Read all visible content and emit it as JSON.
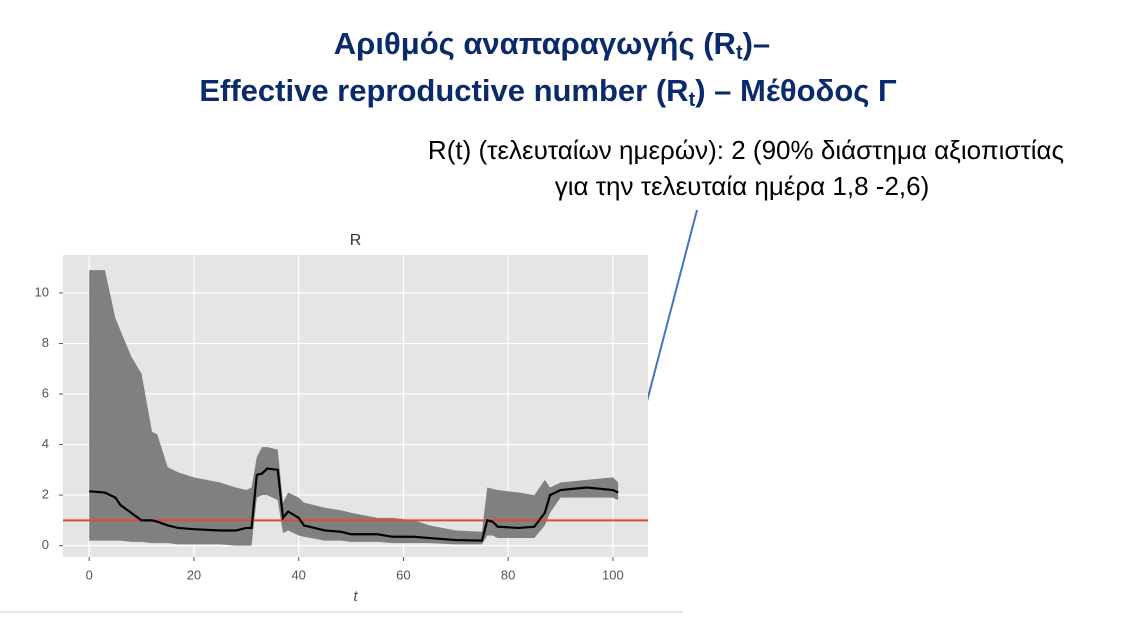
{
  "header": {
    "line1": [
      "Αριθμός αναπαραγωγής (R",
      "t",
      ")–"
    ],
    "line2": [
      "Effective reproductive number (R",
      "t",
      ") – Μέθοδος Γ"
    ]
  },
  "annotation": [
    "R(t) (τελευταίων ημερών): 2 (90% διάστημα αξιοπιστίας",
    "για την τελευταία ημέρα 1,8 -2,6)"
  ],
  "chart_data": {
    "type": "line",
    "title": "R",
    "xlabel": "t",
    "x": [
      0,
      3,
      5,
      6,
      8,
      10,
      12,
      13,
      15,
      17,
      20,
      25,
      28,
      30,
      31,
      32,
      33,
      34,
      36,
      37,
      38,
      40,
      41,
      45,
      48,
      50,
      55,
      58,
      62,
      65,
      70,
      75,
      76,
      77,
      78,
      82,
      85,
      87,
      88,
      90,
      95,
      100,
      101
    ],
    "line": {
      "color": "#000000",
      "values": [
        2.15,
        2.1,
        1.9,
        1.6,
        1.3,
        1.0,
        1.0,
        0.95,
        0.8,
        0.7,
        0.65,
        0.6,
        0.6,
        0.7,
        0.7,
        2.8,
        2.85,
        3.05,
        3.0,
        1.1,
        1.35,
        1.1,
        0.8,
        0.6,
        0.55,
        0.45,
        0.45,
        0.35,
        0.35,
        0.3,
        0.22,
        0.2,
        1.0,
        0.95,
        0.75,
        0.7,
        0.75,
        1.3,
        2.0,
        2.2,
        2.3,
        2.2,
        2.1
      ]
    },
    "band": {
      "color": "#808080",
      "upper": [
        10.9,
        10.9,
        9.0,
        8.5,
        7.5,
        6.8,
        4.5,
        4.4,
        3.1,
        2.9,
        2.7,
        2.5,
        2.3,
        2.2,
        2.3,
        3.5,
        3.9,
        3.9,
        3.8,
        1.7,
        2.1,
        1.9,
        1.7,
        1.5,
        1.4,
        1.3,
        1.1,
        1.1,
        1.0,
        0.8,
        0.6,
        0.55,
        2.3,
        2.25,
        2.2,
        2.1,
        2.0,
        2.6,
        2.3,
        2.5,
        2.6,
        2.7,
        2.5
      ],
      "lower": [
        0.2,
        0.2,
        0.2,
        0.2,
        0.15,
        0.15,
        0.1,
        0.1,
        0.1,
        0.05,
        0.05,
        0.05,
        0.0,
        0.0,
        0.0,
        1.9,
        2.0,
        2.0,
        1.8,
        0.5,
        0.6,
        0.4,
        0.35,
        0.2,
        0.2,
        0.15,
        0.15,
        0.1,
        0.1,
        0.1,
        0.05,
        0.05,
        0.4,
        0.4,
        0.3,
        0.3,
        0.3,
        0.8,
        1.3,
        1.9,
        1.9,
        1.9,
        1.8
      ]
    },
    "hline": {
      "value": 1,
      "color": "#e24a33"
    },
    "xlim": [
      -5,
      106.7
    ],
    "ylim": [
      -0.45,
      11.5
    ],
    "xticks": [
      0,
      20,
      40,
      60,
      80,
      100
    ],
    "yticks": [
      0,
      2,
      4,
      6,
      8,
      10
    ],
    "grid": true,
    "background": "#e5e5e5"
  }
}
